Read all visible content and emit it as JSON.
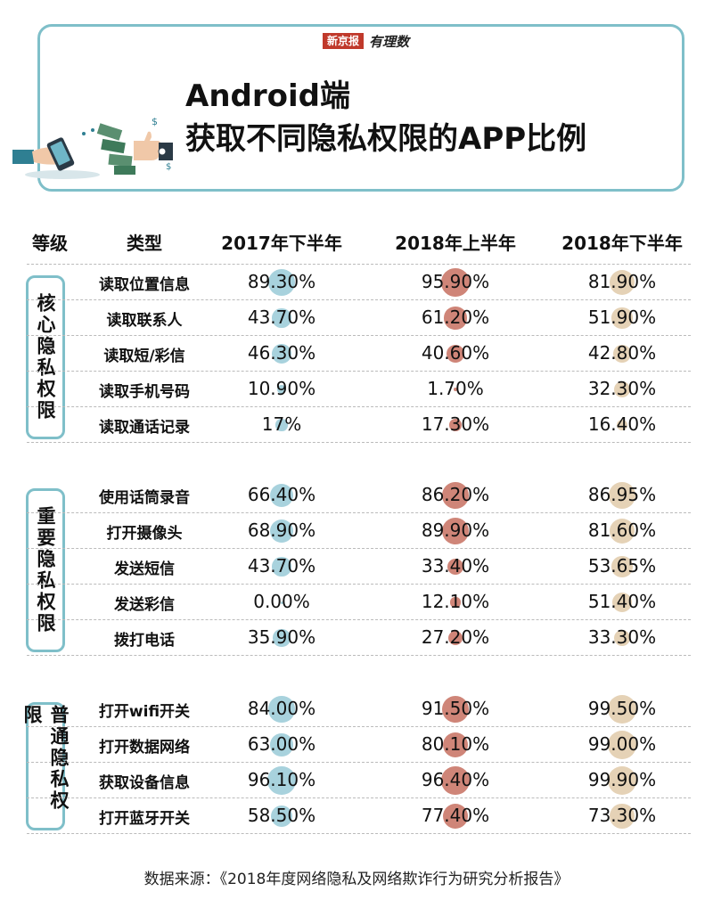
{
  "brand": {
    "paper": "新京报",
    "column": "有理数"
  },
  "title": {
    "line1": "Android端",
    "line2": "获取不同隐私权限的APP比例"
  },
  "headers": {
    "level": "等级",
    "type": "类型",
    "c1": "2017年下半年",
    "c2": "2018年上半年",
    "c3": "2018年下半年"
  },
  "colors": {
    "c1": "#a8d2dd",
    "c2": "#cf8578",
    "c3": "#e5d2b6",
    "frame": "#7fbfc9"
  },
  "chart_data": {
    "type": "table",
    "columns": [
      "2017年下半年",
      "2018年上半年",
      "2018年下半年"
    ],
    "groups": [
      {
        "name": "核心隐私权限",
        "rows": [
          {
            "type": "读取位置信息",
            "labels": [
              "89.30%",
              "95.90%",
              "81.90%"
            ],
            "values": [
              89.3,
              95.9,
              81.9
            ]
          },
          {
            "type": "读取联系人",
            "labels": [
              "43.70%",
              "61.20%",
              "51.90%"
            ],
            "values": [
              43.7,
              61.2,
              51.9
            ]
          },
          {
            "type": "读取短/彩信",
            "labels": [
              "46.30%",
              "40.60%",
              "42.80%"
            ],
            "values": [
              46.3,
              40.6,
              42.8
            ]
          },
          {
            "type": "读取手机号码",
            "labels": [
              "10.90%",
              "1.70%",
              "32.30%"
            ],
            "values": [
              10.9,
              1.7,
              32.3
            ]
          },
          {
            "type": "读取通话记录",
            "labels": [
              "17%",
              "17.30%",
              "16.40%"
            ],
            "values": [
              17,
              17.3,
              16.4
            ]
          }
        ]
      },
      {
        "name": "重要隐私权限",
        "rows": [
          {
            "type": "使用话筒录音",
            "labels": [
              "66.40%",
              "86.20%",
              "86.95%"
            ],
            "values": [
              66.4,
              86.2,
              86.95
            ]
          },
          {
            "type": "打开摄像头",
            "labels": [
              "68.90%",
              "89.90%",
              "81.60%"
            ],
            "values": [
              68.9,
              89.9,
              81.6
            ]
          },
          {
            "type": "发送短信",
            "labels": [
              "43.70%",
              "33.40%",
              "53.65%"
            ],
            "values": [
              43.7,
              33.4,
              53.65
            ]
          },
          {
            "type": "发送彩信",
            "labels": [
              "0.00%",
              "12.10%",
              "51.40%"
            ],
            "values": [
              0,
              12.1,
              51.4
            ]
          },
          {
            "type": "拨打电话",
            "labels": [
              "35.90%",
              "27.20%",
              "33.30%"
            ],
            "values": [
              35.9,
              27.2,
              33.3
            ]
          }
        ]
      },
      {
        "name": "普通隐私权限",
        "rows": [
          {
            "type": "打开wifi开关",
            "labels": [
              "84.00%",
              "91.50%",
              "99.50%"
            ],
            "values": [
              84,
              91.5,
              99.5
            ]
          },
          {
            "type": "打开数据网络",
            "labels": [
              "63.00%",
              "80.10%",
              "99.00%"
            ],
            "values": [
              63,
              80.1,
              99
            ]
          },
          {
            "type": "获取设备信息",
            "labels": [
              "96.10%",
              "96.40%",
              "99.90%"
            ],
            "values": [
              96.1,
              96.4,
              99.9
            ]
          },
          {
            "type": "打开蓝牙开关",
            "labels": [
              "58.50%",
              "77.40%",
              "73.30%"
            ],
            "values": [
              58.5,
              77.4,
              73.3
            ]
          }
        ]
      }
    ]
  },
  "source": "数据来源：《2018年度网络隐私及网络欺诈行为研究分析报告》"
}
